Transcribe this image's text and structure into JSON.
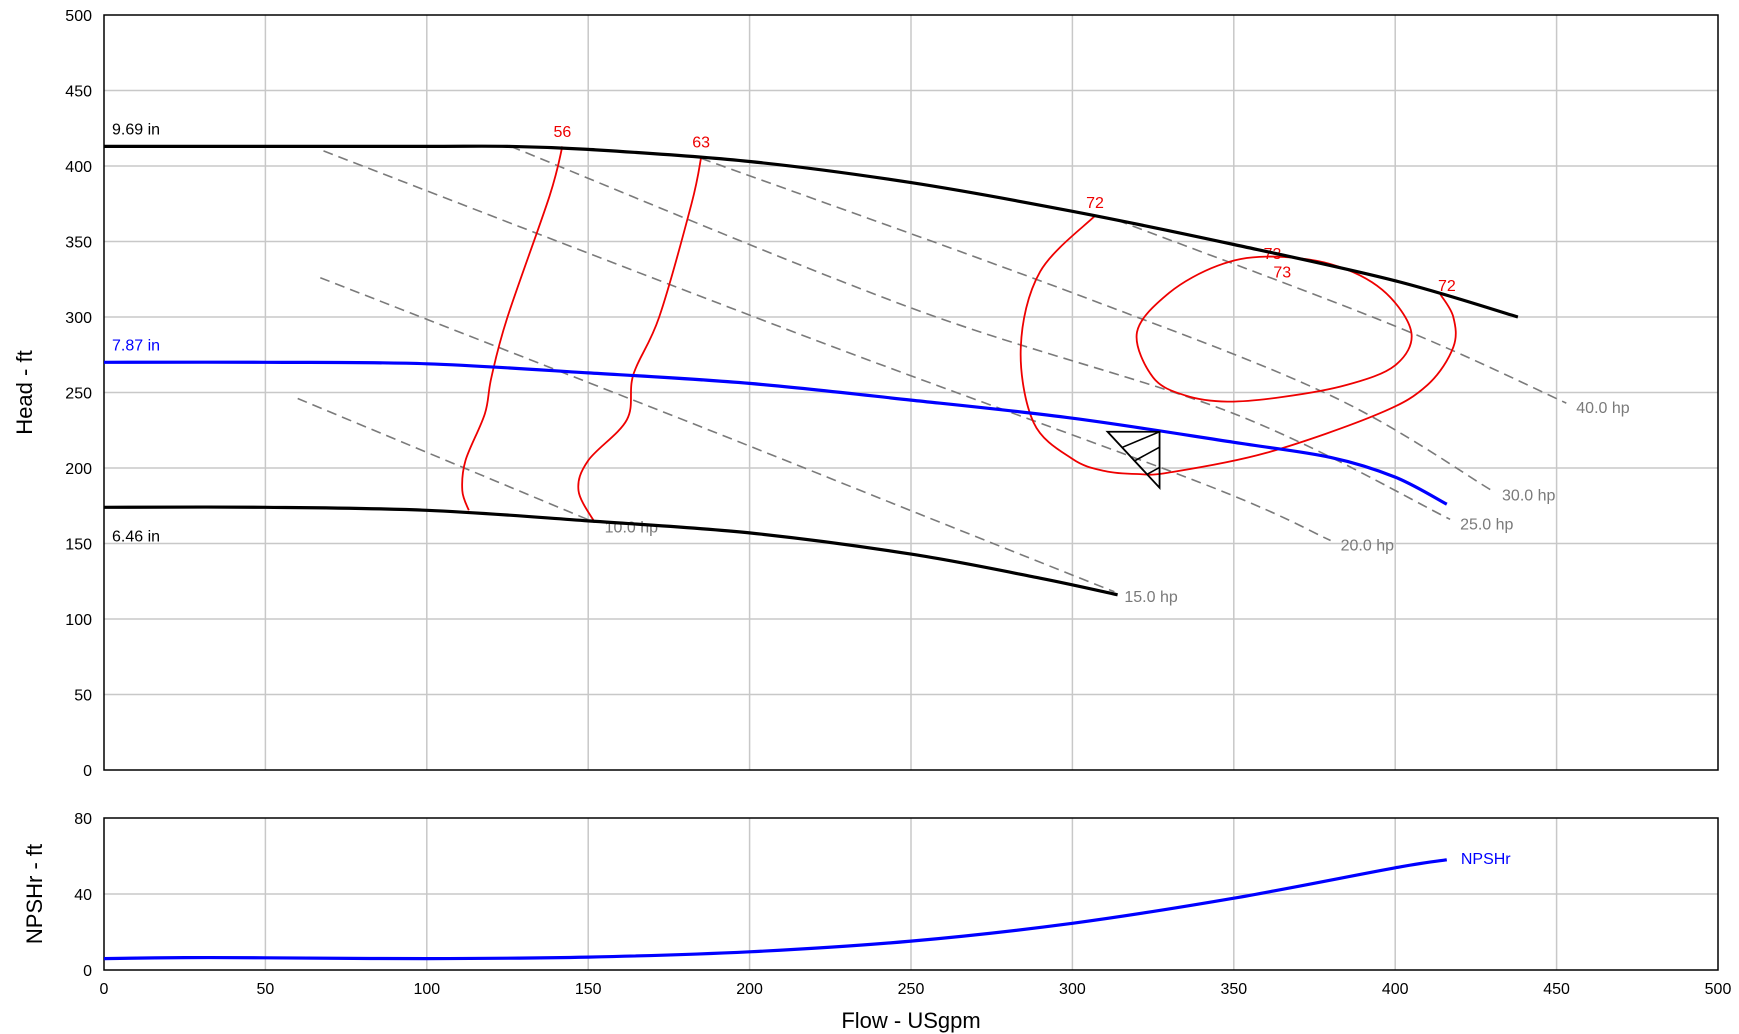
{
  "chart_data": [
    {
      "type": "line",
      "xlabel": "Flow - USgpm",
      "ylabel": "Head - ft",
      "xlim": [
        0,
        500
      ],
      "ylim": [
        0,
        500
      ],
      "x_ticks": [
        0,
        50,
        100,
        150,
        200,
        250,
        300,
        350,
        400,
        450,
        500
      ],
      "y_ticks": [
        0,
        50,
        100,
        150,
        200,
        250,
        300,
        350,
        400,
        450,
        500
      ],
      "grid": true,
      "impeller_curves": [
        {
          "label": "9.69 in",
          "color": "#000000",
          "points": [
            [
              0,
              413
            ],
            [
              50,
              413
            ],
            [
              100,
              413
            ],
            [
              125,
              413
            ],
            [
              150,
              411
            ],
            [
              200,
              403
            ],
            [
              250,
              389
            ],
            [
              300,
              370
            ],
            [
              350,
              348
            ],
            [
              400,
              324
            ],
            [
              438,
              300
            ]
          ]
        },
        {
          "label": "7.87 in",
          "color": "#0000ff",
          "points": [
            [
              0,
              270
            ],
            [
              50,
              270
            ],
            [
              100,
              269
            ],
            [
              150,
              263
            ],
            [
              200,
              256
            ],
            [
              250,
              245
            ],
            [
              300,
              233
            ],
            [
              350,
              217
            ],
            [
              380,
              207
            ],
            [
              400,
              194
            ],
            [
              416,
              176
            ]
          ]
        },
        {
          "label": "6.46 in",
          "color": "#000000",
          "points": [
            [
              0,
              174
            ],
            [
              50,
              174
            ],
            [
              100,
              172
            ],
            [
              150,
              165
            ],
            [
              200,
              157
            ],
            [
              250,
              143
            ],
            [
              290,
              127
            ],
            [
              314,
              116
            ]
          ]
        }
      ],
      "power_lines": [
        {
          "label": "10.0 hp",
          "points": [
            [
              60,
              246
            ],
            [
              152,
              164
            ]
          ]
        },
        {
          "label": "15.0 hp",
          "points": [
            [
              67,
              326
            ],
            [
              177,
              234
            ],
            [
              252,
              170
            ],
            [
              313,
              118
            ]
          ]
        },
        {
          "label": "20.0 hp",
          "points": [
            [
              68,
              410
            ],
            [
              220,
              285
            ],
            [
              340,
              190
            ],
            [
              380,
              152
            ]
          ]
        },
        {
          "label": "25.0 hp",
          "points": [
            [
              126,
              413
            ],
            [
              250,
              306
            ],
            [
              350,
              236
            ],
            [
              417,
              166
            ]
          ]
        },
        {
          "label": "30.0 hp",
          "points": [
            [
              185,
              405
            ],
            [
              300,
              316
            ],
            [
              380,
              248
            ],
            [
              430,
              185
            ]
          ]
        },
        {
          "label": "40.0 hp",
          "points": [
            [
              314,
              364
            ],
            [
              400,
              294
            ],
            [
              453,
              243
            ]
          ]
        }
      ],
      "efficiency_contours": [
        {
          "label": "56",
          "points": [
            [
              142,
              413
            ],
            [
              138,
              380
            ],
            [
              125,
              300
            ],
            [
              120,
              260
            ],
            [
              118,
              236
            ],
            [
              112,
              205
            ],
            [
              111,
              185
            ],
            [
              113,
              172
            ]
          ]
        },
        {
          "label": "63",
          "points": [
            [
              185,
              406
            ],
            [
              182,
              375
            ],
            [
              172,
              300
            ],
            [
              164,
              262
            ],
            [
              162,
              232
            ],
            [
              150,
              205
            ],
            [
              147,
              185
            ],
            [
              152,
              164
            ]
          ]
        },
        {
          "label": "72",
          "closed": false,
          "points": [
            [
              307,
              367
            ],
            [
              290,
              330
            ],
            [
              284,
              280
            ],
            [
              288,
              230
            ],
            [
              300,
              206
            ],
            [
              310,
              198
            ],
            [
              320,
              196
            ],
            [
              330,
              197
            ],
            [
              360,
              210
            ],
            [
              395,
              236
            ],
            [
              410,
              255
            ],
            [
              418,
              280
            ],
            [
              418,
              300
            ],
            [
              414,
              315
            ]
          ]
        },
        {
          "label": "73",
          "closed": true,
          "points": [
            [
              360,
              340
            ],
            [
              345,
              334
            ],
            [
              330,
              316
            ],
            [
              320,
              290
            ],
            [
              325,
              260
            ],
            [
              335,
              248
            ],
            [
              348,
              244
            ],
            [
              365,
              247
            ],
            [
              385,
              255
            ],
            [
              400,
              268
            ],
            [
              405,
              290
            ],
            [
              396,
              318
            ],
            [
              380,
              335
            ]
          ]
        }
      ],
      "efficiency_labels": [
        {
          "text": "56",
          "x": 142,
          "y": 418
        },
        {
          "text": "63",
          "x": 185,
          "y": 411
        },
        {
          "text": "72",
          "x": 307,
          "y": 371
        },
        {
          "text": "73",
          "x": 362,
          "y": 337
        },
        {
          "text": "73",
          "x": 365,
          "y": 325
        },
        {
          "text": "72",
          "x": 416,
          "y": 316
        }
      ],
      "operating_point": {
        "flow": 327,
        "head": 224
      }
    },
    {
      "type": "line",
      "xlabel": "Flow - USgpm",
      "ylabel": "NPSHr - ft",
      "xlim": [
        0,
        500
      ],
      "ylim": [
        0,
        80
      ],
      "x_ticks": [
        0,
        50,
        100,
        150,
        200,
        250,
        300,
        350,
        400,
        450,
        500
      ],
      "y_ticks": [
        0,
        40,
        80
      ],
      "grid": true,
      "series": [
        {
          "name": "NPSHr",
          "color": "#0000ff",
          "points": [
            [
              0,
              6
            ],
            [
              25,
              6.5
            ],
            [
              50,
              6.4
            ],
            [
              100,
              6
            ],
            [
              150,
              6.8
            ],
            [
              200,
              9.6
            ],
            [
              250,
              15.2
            ],
            [
              300,
              24.6
            ],
            [
              350,
              37.8
            ],
            [
              400,
              53.8
            ],
            [
              416,
              58
            ]
          ]
        }
      ]
    }
  ]
}
